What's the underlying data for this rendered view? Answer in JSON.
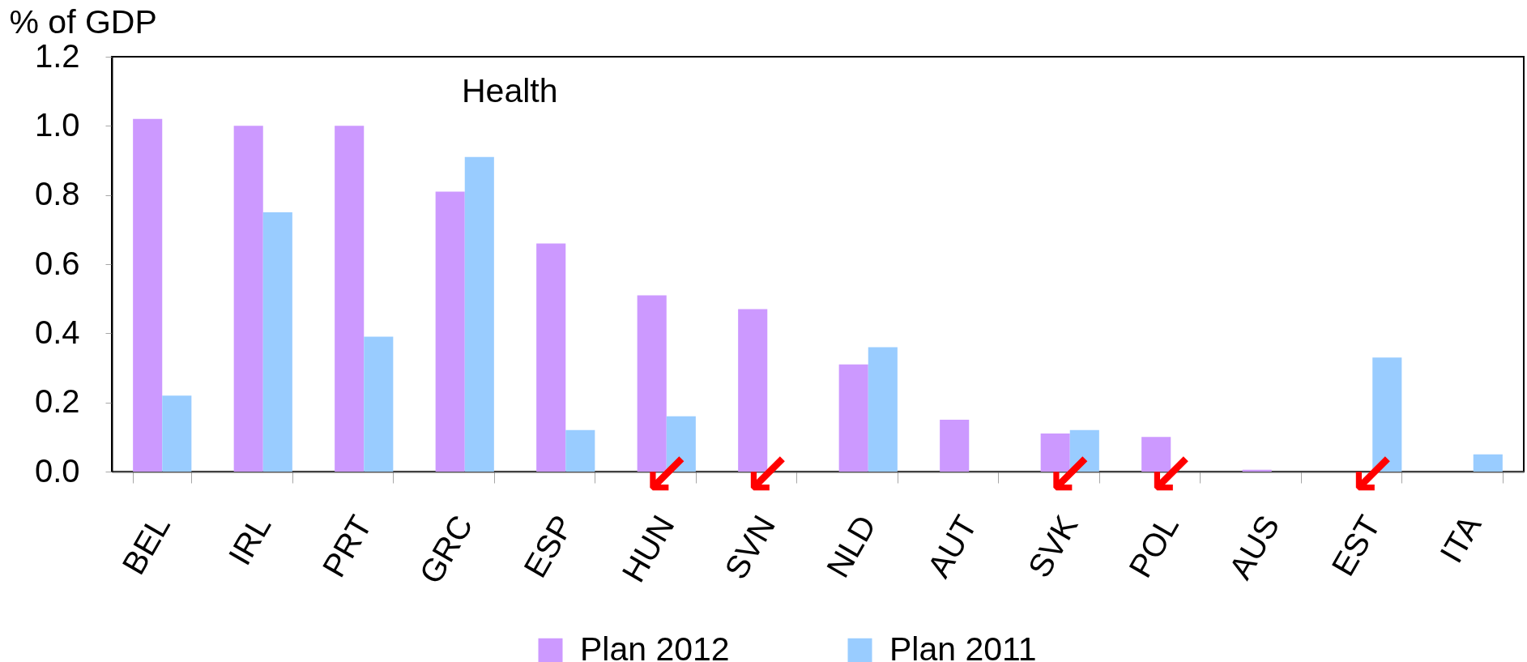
{
  "chart_data": {
    "type": "bar",
    "title": "Health",
    "ylabel": "% of GDP",
    "categories": [
      "BEL",
      "IRL",
      "PRT",
      "GRC",
      "ESP",
      "HUN",
      "SVN",
      "NLD",
      "AUT",
      "SVK",
      "POL",
      "AUS",
      "EST",
      "ITA"
    ],
    "series": [
      {
        "name": "Plan 2012",
        "color": "#cc99ff",
        "values": [
          1.02,
          1.0,
          1.0,
          0.81,
          0.66,
          0.51,
          0.47,
          0.31,
          0.15,
          0.11,
          0.1,
          0.005,
          null,
          null
        ]
      },
      {
        "name": "Plan 2011",
        "color": "#99ccff",
        "values": [
          0.22,
          0.75,
          0.39,
          0.91,
          0.12,
          0.16,
          null,
          0.36,
          null,
          0.12,
          null,
          null,
          0.33,
          0.05
        ]
      }
    ],
    "ylim": [
      0,
      1.2
    ],
    "yticks": [
      {
        "value": 0,
        "label": "0.0"
      },
      0.2,
      0.4,
      0.6,
      0.8,
      {
        "value": 1,
        "label": "1.0"
      },
      1.2
    ],
    "legend": "bottom",
    "annotations": [
      {
        "text": "↙",
        "x": "HUN",
        "y": 0
      },
      {
        "text": "↙",
        "x": "SVN",
        "y": 0
      },
      {
        "text": "↙",
        "x": "SVK",
        "y": 0
      },
      {
        "text": "↙",
        "x": "POL",
        "y": 0
      },
      "↙"
    ]
  }
}
